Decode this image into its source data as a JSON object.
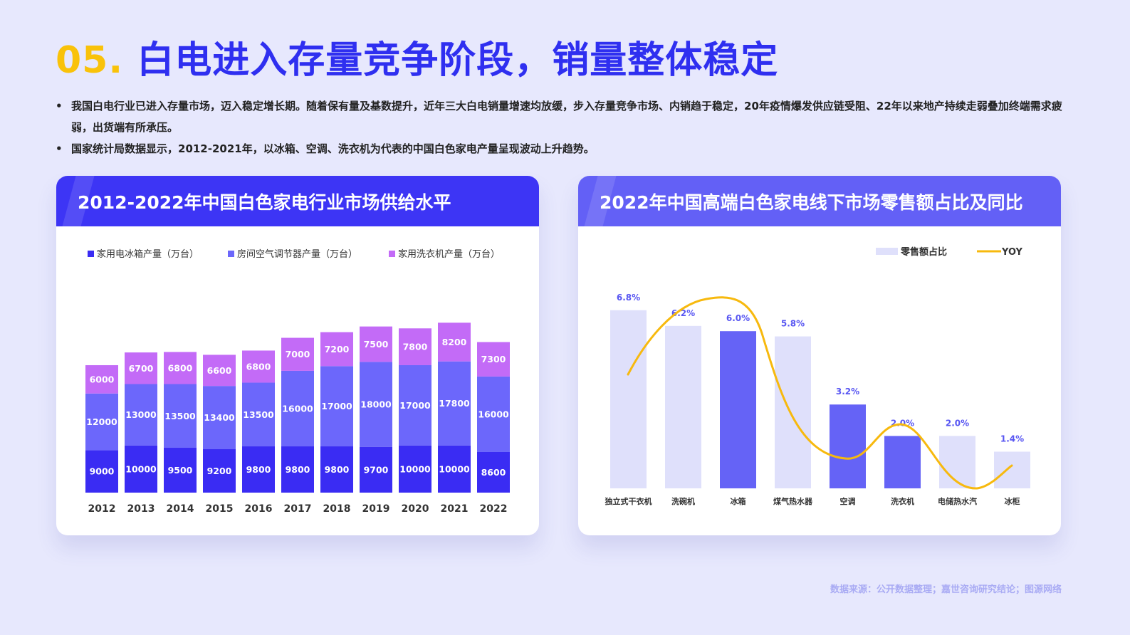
{
  "page": {
    "title_num": "05.",
    "title_text": "白电进入存量竞争阶段，销量整体稳定",
    "bullets": [
      "我国白电行业已进入存量市场，迈入稳定增长期。随着保有量及基数提升，近年三大白电销量增速均放缓，步入存量竞争市场、内销趋于稳定，20年疫情爆发供应链受阻、22年以来地产持续走弱叠加终端需求疲弱，出货端有所承压。",
      "国家统计局数据显示，2012-2021年，以冰箱、空调、洗衣机为代表的中国白色家电产量呈现波动上升趋势。"
    ],
    "source": "数据来源：公开数据整理；嘉世咨询研究结论；图源网络"
  },
  "left_card": {
    "title": "2012-2022年中国白色家电行业市场供给水平"
  },
  "right_card": {
    "title": "2022年中国高端白色家电线下市场零售额占比及同比"
  },
  "chart_data": [
    {
      "type": "bar",
      "stacked": true,
      "title": "2012-2022年中国白色家电行业市场供给水平",
      "categories": [
        "2012",
        "2013",
        "2014",
        "2015",
        "2016",
        "2017",
        "2018",
        "2019",
        "2020",
        "2021",
        "2022"
      ],
      "series": [
        {
          "name": "家用电冰箱产量（万台）",
          "color": "#3a2cf3",
          "values": [
            9000,
            10000,
            9500,
            9200,
            9800,
            9800,
            9800,
            9700,
            10000,
            10000,
            8600
          ]
        },
        {
          "name": "房间空气调节器产量（万台）",
          "color": "#6c67fb",
          "values": [
            12000,
            13000,
            13500,
            13400,
            13500,
            16000,
            17000,
            18000,
            17000,
            17800,
            16000
          ]
        },
        {
          "name": "家用洗衣机产量（万台）",
          "color": "#c36bf7",
          "values": [
            6000,
            6700,
            6800,
            6600,
            6800,
            7000,
            7200,
            7500,
            7800,
            8200,
            7300
          ]
        }
      ],
      "legend": "top"
    },
    {
      "type": "bar",
      "title": "2022年中国高端白色家电线下市场零售额占比及同比",
      "categories": [
        "独立式干衣机",
        "洗碗机",
        "冰箱",
        "煤气热水器",
        "空调",
        "洗衣机",
        "电储热水汽",
        "冰柜"
      ],
      "values": [
        6.8,
        6.2,
        6.0,
        5.8,
        3.2,
        2.0,
        2.0,
        1.4
      ],
      "labels": [
        "6.8%",
        "6.2%",
        "6.0%",
        "5.8%",
        "3.2%",
        "2.0%",
        "2.0%",
        "1.4%"
      ],
      "highlighted": [
        false,
        false,
        true,
        false,
        true,
        true,
        false,
        false
      ],
      "colors": {
        "light": "#dfe0fb",
        "dark": "#6563f6",
        "line": "#f7b90e"
      },
      "series": [
        {
          "name": "零售额占比",
          "values": [
            6.8,
            6.2,
            6.0,
            5.8,
            3.2,
            2.0,
            2.0,
            1.4
          ]
        },
        {
          "name": "YOY"
        }
      ],
      "legend": "top-right"
    }
  ]
}
